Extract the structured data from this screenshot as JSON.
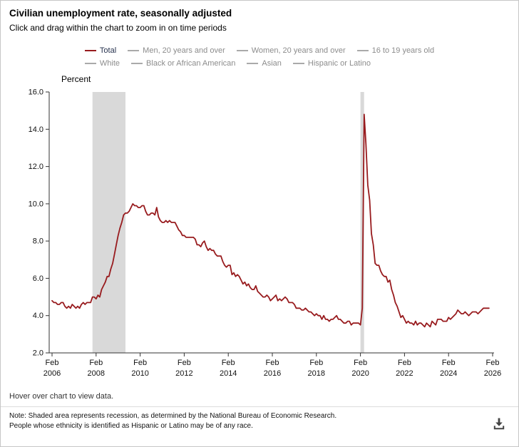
{
  "header": {
    "title": "Civilian unemployment rate, seasonally adjusted",
    "subtitle": "Click and drag within the chart to zoom in on time periods"
  },
  "legend": {
    "active_swatch_color": "#981B1E",
    "active_label_color": "#26324E",
    "inactive_swatch_color": "#AAAAAA",
    "inactive_label_color": "#8C8C8C",
    "rows": [
      [
        {
          "label": "Total",
          "active": true
        },
        {
          "label": "Men, 20 years and over",
          "active": false
        },
        {
          "label": "Women, 20 years and over",
          "active": false
        },
        {
          "label": "16 to 19 years old",
          "active": false
        }
      ],
      [
        {
          "label": "White",
          "active": false
        },
        {
          "label": "Black or African American",
          "active": false
        },
        {
          "label": "Asian",
          "active": false
        },
        {
          "label": "Hispanic or Latino",
          "active": false
        }
      ]
    ]
  },
  "chart_data": {
    "type": "line",
    "title": "Civilian unemployment rate, seasonally adjusted",
    "xlabel": "",
    "ylabel": "Percent",
    "ylim": [
      2.0,
      16.0
    ],
    "y_ticks": [
      2,
      4,
      6,
      8,
      10,
      12,
      14,
      16
    ],
    "grid": false,
    "legend_position": "top",
    "x_axis": {
      "start": "2006-02",
      "end": "2026-02",
      "tick_every_months": 24,
      "tick_month_label": "Feb",
      "tick_years": [
        "2006",
        "2008",
        "2010",
        "2012",
        "2014",
        "2016",
        "2018",
        "2020",
        "2022",
        "2024",
        "2026"
      ]
    },
    "recessions": [
      {
        "start": "2007-12",
        "end": "2009-06"
      },
      {
        "start": "2020-02",
        "end": "2020-04"
      }
    ],
    "series": [
      {
        "name": "Total",
        "color": "#981B1E",
        "start": "2006-02",
        "frequency": "monthly",
        "values": [
          4.8,
          4.7,
          4.7,
          4.6,
          4.6,
          4.7,
          4.7,
          4.5,
          4.4,
          4.5,
          4.4,
          4.6,
          4.5,
          4.4,
          4.5,
          4.4,
          4.6,
          4.7,
          4.6,
          4.7,
          4.7,
          4.7,
          5.0,
          5.0,
          4.9,
          5.1,
          5.0,
          5.4,
          5.6,
          5.8,
          6.1,
          6.1,
          6.5,
          6.8,
          7.3,
          7.8,
          8.3,
          8.7,
          9.0,
          9.4,
          9.5,
          9.5,
          9.6,
          9.8,
          10.0,
          9.9,
          9.9,
          9.8,
          9.8,
          9.9,
          9.9,
          9.6,
          9.4,
          9.4,
          9.5,
          9.5,
          9.4,
          9.8,
          9.3,
          9.1,
          9.0,
          9.0,
          9.1,
          9.0,
          9.1,
          9.0,
          9.0,
          9.0,
          8.8,
          8.6,
          8.5,
          8.3,
          8.3,
          8.2,
          8.2,
          8.2,
          8.2,
          8.2,
          8.1,
          7.8,
          7.8,
          7.7,
          7.9,
          8.0,
          7.7,
          7.5,
          7.6,
          7.5,
          7.5,
          7.3,
          7.2,
          7.2,
          7.2,
          6.9,
          6.7,
          6.6,
          6.7,
          6.7,
          6.2,
          6.3,
          6.1,
          6.2,
          6.1,
          5.9,
          5.7,
          5.8,
          5.6,
          5.7,
          5.5,
          5.4,
          5.4,
          5.6,
          5.3,
          5.2,
          5.1,
          5.0,
          5.0,
          5.1,
          5.0,
          4.8,
          4.9,
          5.0,
          5.1,
          4.8,
          4.9,
          4.8,
          4.9,
          5.0,
          4.9,
          4.7,
          4.7,
          4.7,
          4.6,
          4.4,
          4.4,
          4.4,
          4.3,
          4.3,
          4.4,
          4.3,
          4.2,
          4.2,
          4.1,
          4.0,
          4.1,
          4.0,
          4.0,
          3.8,
          4.0,
          3.8,
          3.8,
          3.7,
          3.8,
          3.8,
          3.9,
          4.0,
          3.8,
          3.8,
          3.7,
          3.6,
          3.6,
          3.7,
          3.7,
          3.5,
          3.6,
          3.6,
          3.6,
          3.6,
          3.5,
          4.4,
          14.8,
          13.2,
          11.0,
          10.2,
          8.4,
          7.8,
          6.8,
          6.7,
          6.7,
          6.4,
          6.2,
          6.1,
          6.1,
          5.8,
          5.9,
          5.4,
          5.1,
          4.7,
          4.5,
          4.2,
          3.9,
          4.0,
          3.8,
          3.6,
          3.7,
          3.6,
          3.6,
          3.5,
          3.7,
          3.5,
          3.6,
          3.6,
          3.5,
          3.4,
          3.6,
          3.5,
          3.4,
          3.7,
          3.6,
          3.5,
          3.8,
          3.8,
          3.8,
          3.7,
          3.7,
          3.7,
          3.9,
          3.8,
          3.9,
          4.0,
          4.1,
          4.3,
          4.2,
          4.1,
          4.1,
          4.2,
          4.1,
          4.0,
          4.1,
          4.2,
          4.2,
          4.2,
          4.1,
          4.2,
          4.3,
          4.4,
          4.4,
          4.4,
          4.4
        ]
      }
    ]
  },
  "footer": {
    "hover_text": "Hover over chart to view data.",
    "note_line1": "Note: Shaded area represents recession, as determined by the National Bureau of Economic Research.",
    "note_line2": "People whose ethnicity is identified as Hispanic or Latino may be of any race."
  },
  "colors": {
    "line": "#981B1E",
    "recession_band": "#D9D9D9",
    "axis": "#333333",
    "tick_text": "#111111"
  }
}
